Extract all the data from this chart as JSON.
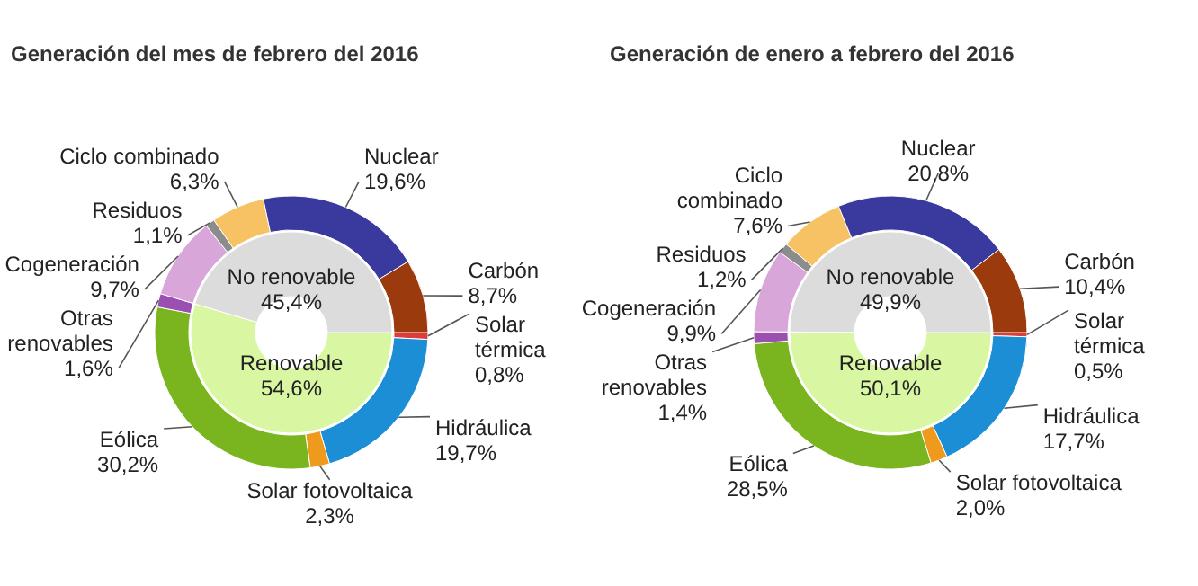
{
  "chart_data": [
    {
      "type": "donut",
      "title": "Generación del mes de febrero del 2016",
      "categories": [
        "Solar térmica",
        "Hidráulica",
        "Solar fotovoltaica",
        "Eólica",
        "Otras renovables",
        "Cogeneración",
        "Residuos",
        "Ciclo combinado",
        "Nuclear",
        "Carbón"
      ],
      "values": [
        0.8,
        19.7,
        2.3,
        30.2,
        1.6,
        9.7,
        1.1,
        6.3,
        19.6,
        8.7
      ],
      "colors": [
        "#e03b3b",
        "#1b8ed6",
        "#ee9a1c",
        "#7ab51f",
        "#9b4fb0",
        "#d9a6d9",
        "#8c8c8c",
        "#f6c263",
        "#3a3a9e",
        "#9a3a0d"
      ],
      "value_labels": [
        "0,8%",
        "19,7%",
        "2,3%",
        "30,2%",
        "1,6%",
        "9,7%",
        "1,1%",
        "6,3%",
        "19,6%",
        "8,7%"
      ]
    },
    {
      "type": "donut",
      "categories": [
        "Renovable",
        "No renovable"
      ],
      "values": [
        54.6,
        45.4
      ],
      "colors": [
        "#d9f7a3",
        "#dcdcdc"
      ],
      "value_labels": [
        "54,6%",
        "45,4%"
      ]
    },
    {
      "type": "donut",
      "title": "Generación de enero a febrero del 2016",
      "categories": [
        "Solar térmica",
        "Hidráulica",
        "Solar fotovoltaica",
        "Eólica",
        "Otras renovables",
        "Cogeneración",
        "Residuos",
        "Ciclo combinado",
        "Nuclear",
        "Carbón"
      ],
      "values": [
        0.5,
        17.7,
        2.0,
        28.5,
        1.4,
        9.9,
        1.2,
        7.6,
        20.8,
        10.4
      ],
      "colors": [
        "#e03b3b",
        "#1b8ed6",
        "#ee9a1c",
        "#7ab51f",
        "#9b4fb0",
        "#d9a6d9",
        "#8c8c8c",
        "#f6c263",
        "#3a3a9e",
        "#9a3a0d"
      ],
      "value_labels": [
        "0,5%",
        "17,7%",
        "2,0%",
        "28,5%",
        "1,4%",
        "9,9%",
        "1,2%",
        "7,6%",
        "20,8%",
        "10,4%"
      ]
    },
    {
      "type": "donut",
      "categories": [
        "Renovable",
        "No renovable"
      ],
      "values": [
        50.1,
        49.9
      ],
      "colors": [
        "#d9f7a3",
        "#dcdcdc"
      ],
      "value_labels": [
        "50,1%",
        "49,9%"
      ]
    }
  ]
}
